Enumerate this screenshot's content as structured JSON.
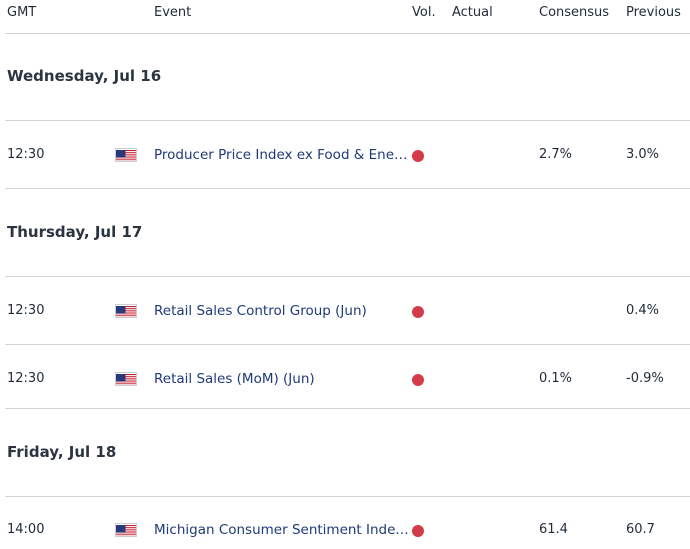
{
  "columns": {
    "gmt": "GMT",
    "event": "Event",
    "vol": "Vol.",
    "actual": "Actual",
    "consensus": "Consensus",
    "previous": "Previous"
  },
  "days": [
    {
      "label": "Wednesday, Jul 16",
      "events": [
        {
          "time": "12:30",
          "country_flag": "us-flag-icon",
          "name": "Producer Price Index ex Food & Energ…",
          "volatility": "high",
          "actual": "",
          "consensus": "2.7%",
          "previous": "3.0%"
        }
      ]
    },
    {
      "label": "Thursday, Jul 17",
      "events": [
        {
          "time": "12:30",
          "country_flag": "us-flag-icon",
          "name": "Retail Sales Control Group (Jun)",
          "volatility": "high",
          "actual": "",
          "consensus": "",
          "previous": "0.4%"
        },
        {
          "time": "12:30",
          "country_flag": "us-flag-icon",
          "name": "Retail Sales (MoM) (Jun)",
          "volatility": "high",
          "actual": "",
          "consensus": "0.1%",
          "previous": "-0.9%"
        }
      ]
    },
    {
      "label": "Friday, Jul 18",
      "events": [
        {
          "time": "14:00",
          "country_flag": "us-flag-icon",
          "name": "Michigan Consumer Sentiment Index…",
          "volatility": "high",
          "actual": "",
          "consensus": "61.4",
          "previous": "60.7"
        }
      ]
    }
  ],
  "colors": {
    "volatility_high": "#d43b4a",
    "event_link": "#1e3a78",
    "divider": "#d4d4d4"
  }
}
